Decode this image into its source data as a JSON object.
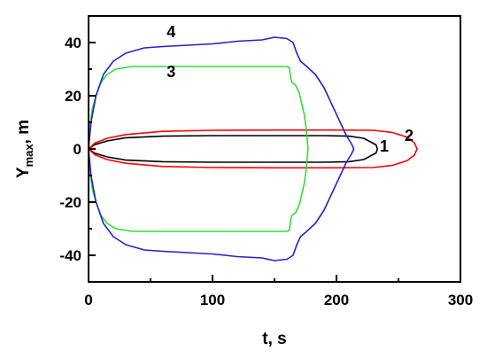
{
  "chart_data": {
    "type": "line",
    "title": "",
    "xlabel": "t, s",
    "ylabel_main": "Y",
    "ylabel_sub": "max",
    "ylabel_suffix": ", m",
    "xlim": [
      0,
      300
    ],
    "ylim": [
      -50,
      50
    ],
    "x_ticks": [
      0,
      100,
      200,
      300
    ],
    "y_ticks": [
      -40,
      -20,
      0,
      20,
      40
    ],
    "x_tick_labels": [
      "0",
      "100",
      "200",
      "300"
    ],
    "y_tick_labels": [
      "-40",
      "-20",
      "0",
      "20",
      "40"
    ],
    "grid": false,
    "legend": "none",
    "series": [
      {
        "label": "1",
        "label_pos": [
          235,
          1
        ],
        "color": "#000000",
        "points": [
          [
            0,
            0
          ],
          [
            5,
            1.6
          ],
          [
            15,
            3
          ],
          [
            30,
            4.2
          ],
          [
            60,
            4.8
          ],
          [
            100,
            5
          ],
          [
            150,
            5
          ],
          [
            190,
            5
          ],
          [
            210,
            4.8
          ],
          [
            222,
            4
          ],
          [
            232,
            1.5
          ],
          [
            233,
            0
          ],
          [
            232,
            -1.5
          ],
          [
            222,
            -4
          ],
          [
            210,
            -4.8
          ],
          [
            190,
            -5
          ],
          [
            150,
            -5
          ],
          [
            100,
            -5
          ],
          [
            60,
            -4.8
          ],
          [
            30,
            -4.2
          ],
          [
            15,
            -3
          ],
          [
            5,
            -1.6
          ],
          [
            0,
            0
          ]
        ]
      },
      {
        "label": "2",
        "label_pos": [
          255,
          5
        ],
        "color": "#ff0000",
        "points": [
          [
            0,
            0
          ],
          [
            5,
            2.2
          ],
          [
            15,
            4
          ],
          [
            30,
            5.4
          ],
          [
            60,
            6.6
          ],
          [
            100,
            7
          ],
          [
            150,
            7.1
          ],
          [
            200,
            7.1
          ],
          [
            230,
            7
          ],
          [
            245,
            6.2
          ],
          [
            257,
            4.4
          ],
          [
            263,
            2.2
          ],
          [
            265,
            0
          ],
          [
            263,
            -2.2
          ],
          [
            257,
            -4.4
          ],
          [
            245,
            -6.2
          ],
          [
            230,
            -7
          ],
          [
            200,
            -7.1
          ],
          [
            150,
            -7.1
          ],
          [
            100,
            -7
          ],
          [
            60,
            -6.6
          ],
          [
            30,
            -5.4
          ],
          [
            15,
            -4
          ],
          [
            5,
            -2.2
          ],
          [
            0,
            0
          ]
        ]
      },
      {
        "label": "3",
        "label_pos": [
          63,
          29
        ],
        "color": "#33dd33",
        "points": [
          [
            0,
            0
          ],
          [
            1,
            8
          ],
          [
            3,
            15
          ],
          [
            6,
            20
          ],
          [
            10,
            25
          ],
          [
            15,
            28
          ],
          [
            22,
            30
          ],
          [
            35,
            31
          ],
          [
            60,
            31
          ],
          [
            100,
            31
          ],
          [
            140,
            31
          ],
          [
            160,
            31
          ],
          [
            162,
            30.5
          ],
          [
            163,
            27
          ],
          [
            164,
            25
          ],
          [
            167,
            24
          ],
          [
            170,
            21
          ],
          [
            174,
            13
          ],
          [
            176,
            6
          ],
          [
            177,
            0
          ],
          [
            176,
            -6
          ],
          [
            174,
            -13
          ],
          [
            170,
            -21
          ],
          [
            167,
            -24
          ],
          [
            164,
            -25
          ],
          [
            163,
            -27
          ],
          [
            162,
            -30.5
          ],
          [
            160,
            -31
          ],
          [
            140,
            -31
          ],
          [
            100,
            -31
          ],
          [
            60,
            -31
          ],
          [
            35,
            -31
          ],
          [
            22,
            -30
          ],
          [
            15,
            -28
          ],
          [
            10,
            -25
          ],
          [
            6,
            -20
          ],
          [
            3,
            -15
          ],
          [
            1,
            -8
          ],
          [
            0,
            0
          ]
        ]
      },
      {
        "label": "4",
        "label_pos": [
          63,
          44
        ],
        "color": "#2222cc",
        "points": [
          [
            0,
            0
          ],
          [
            2,
            10
          ],
          [
            6,
            20
          ],
          [
            12,
            28
          ],
          [
            20,
            33
          ],
          [
            30,
            36
          ],
          [
            45,
            38
          ],
          [
            60,
            38.5
          ],
          [
            80,
            39
          ],
          [
            100,
            39.5
          ],
          [
            120,
            40.5
          ],
          [
            140,
            41
          ],
          [
            150,
            42
          ],
          [
            160,
            41.5
          ],
          [
            165,
            40
          ],
          [
            168,
            36
          ],
          [
            171,
            33
          ],
          [
            176,
            31
          ],
          [
            183,
            28
          ],
          [
            190,
            23
          ],
          [
            197,
            16
          ],
          [
            203,
            10
          ],
          [
            208,
            5
          ],
          [
            212,
            2
          ],
          [
            214,
            0
          ],
          [
            212,
            -2
          ],
          [
            208,
            -5
          ],
          [
            203,
            -10
          ],
          [
            197,
            -16
          ],
          [
            190,
            -23
          ],
          [
            183,
            -28
          ],
          [
            176,
            -31
          ],
          [
            171,
            -33
          ],
          [
            168,
            -36
          ],
          [
            165,
            -40
          ],
          [
            160,
            -41.5
          ],
          [
            150,
            -42
          ],
          [
            140,
            -41
          ],
          [
            120,
            -40.5
          ],
          [
            100,
            -39.5
          ],
          [
            80,
            -39
          ],
          [
            60,
            -38.5
          ],
          [
            45,
            -38
          ],
          [
            30,
            -36
          ],
          [
            20,
            -33
          ],
          [
            12,
            -28
          ],
          [
            6,
            -20
          ],
          [
            2,
            -10
          ],
          [
            0,
            0
          ]
        ]
      }
    ]
  }
}
